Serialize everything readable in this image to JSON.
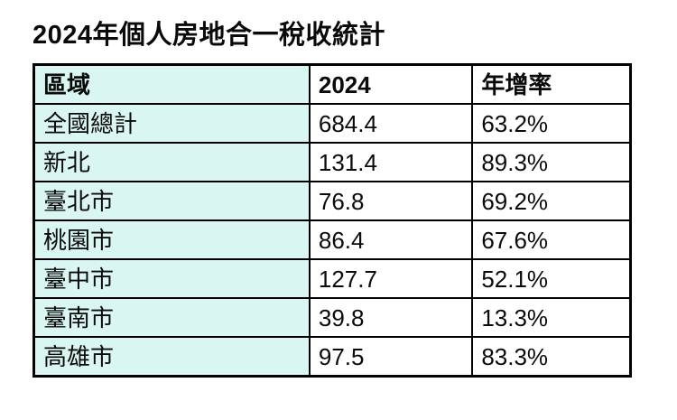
{
  "title": "2024年個人房地合一稅收統計",
  "colors": {
    "region_column_bg": "#d9f6f2",
    "table_border": "#000000",
    "cell_bg": "#ffffff",
    "text": "#0a0a0a"
  },
  "chart_data": {
    "type": "table",
    "title": "2024年個人房地合一稅收統計",
    "columns": [
      "區域",
      "2024",
      "年增率"
    ],
    "rows": [
      [
        "全國總計",
        "684.4",
        "63.2%"
      ],
      [
        "新北",
        "131.4",
        "89.3%"
      ],
      [
        "臺北市",
        "76.8",
        "69.2%"
      ],
      [
        "桃園市",
        "86.4",
        "67.6%"
      ],
      [
        "臺中市",
        "127.7",
        "52.1%"
      ],
      [
        "臺南市",
        "39.8",
        "13.3%"
      ],
      [
        "高雄市",
        "97.5",
        "83.3%"
      ]
    ]
  }
}
